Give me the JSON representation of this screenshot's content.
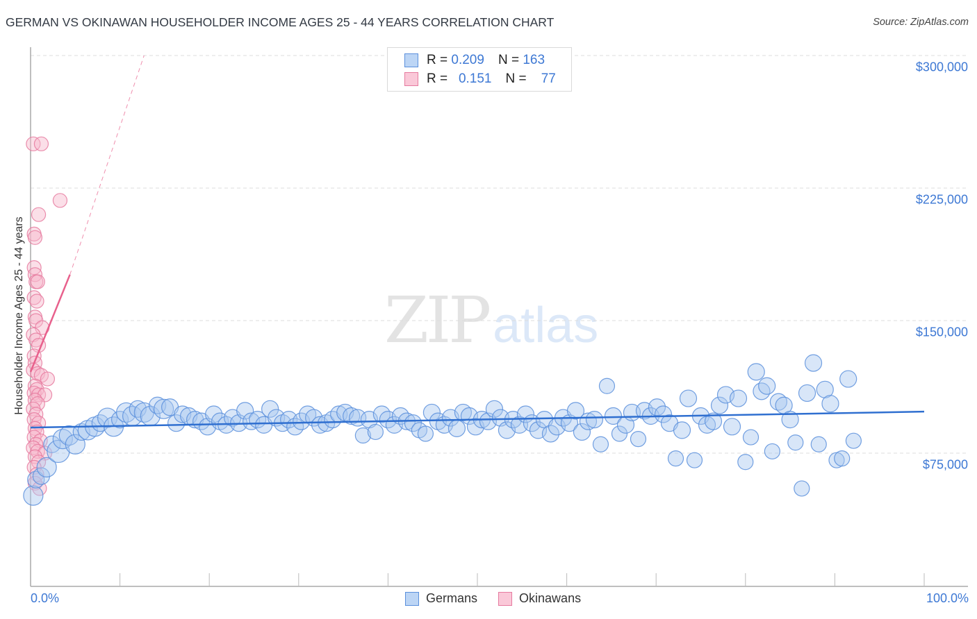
{
  "title": "GERMAN VS OKINAWAN HOUSEHOLDER INCOME AGES 25 - 44 YEARS CORRELATION CHART",
  "source": "Source: ZipAtlas.com",
  "colors": {
    "germans_fill": "#a9c8f0",
    "germans_stroke": "#5a8fdc",
    "germans_line": "#2f6fd0",
    "okinawans_fill": "#f6b8cc",
    "okinawans_stroke": "#e67a9f",
    "okinawans_line": "#e8608c",
    "tick_label": "#3d78d4",
    "grid": "#dddddd"
  },
  "legend": {
    "germans": {
      "r_label": "R =",
      "r_value": "0.209",
      "n_label": "N =",
      "n_value": "163"
    },
    "okinawans": {
      "r_label": "R =",
      "r_value": "0.151",
      "n_label": "N =",
      "n_value": "77"
    }
  },
  "bottom_legend": {
    "germans": "Germans",
    "okinawans": "Okinawans"
  },
  "watermark": {
    "zip": "ZIP",
    "atlas": "atlas"
  },
  "axes": {
    "ylabel": "Householder Income Ages 25 - 44 years",
    "yticks": [
      "$300,000",
      "$225,000",
      "$150,000",
      "$75,000"
    ],
    "xtick_left": "0.0%",
    "xtick_right": "100.0%"
  },
  "chart_data": {
    "type": "scatter",
    "title": "GERMAN VS OKINAWAN HOUSEHOLDER INCOME AGES 25 - 44 YEARS CORRELATION CHART",
    "xlabel": "",
    "ylabel": "Householder Income Ages 25 - 44 years",
    "xlim": [
      0,
      100
    ],
    "ylim": [
      0,
      310000
    ],
    "ytick_values": [
      75000,
      150000,
      225000,
      300000
    ],
    "grid": true,
    "legend_position": "top-center",
    "series": [
      {
        "name": "Germans",
        "R": 0.209,
        "N": 163,
        "trend": {
          "x": [
            0,
            100
          ],
          "y": [
            89500,
            98500
          ]
        },
        "points": [
          [
            0.3,
            51000,
            14
          ],
          [
            0.6,
            60000,
            12
          ],
          [
            1.2,
            62000,
            12
          ],
          [
            1.8,
            67000,
            14
          ],
          [
            2.4,
            80000,
            12
          ],
          [
            3.1,
            76000,
            16
          ],
          [
            3.6,
            83000,
            14
          ],
          [
            4.3,
            85000,
            14
          ],
          [
            5.0,
            80000,
            14
          ],
          [
            5.7,
            87000,
            12
          ],
          [
            6.4,
            88000,
            14
          ],
          [
            7.2,
            90000,
            14
          ],
          [
            7.8,
            92000,
            12
          ],
          [
            8.6,
            95000,
            14
          ],
          [
            9.3,
            90000,
            14
          ],
          [
            10.0,
            94000,
            12
          ],
          [
            10.7,
            98000,
            14
          ],
          [
            11.4,
            96000,
            14
          ],
          [
            12.0,
            100000,
            12
          ],
          [
            12.7,
            98000,
            14
          ],
          [
            13.4,
            96000,
            14
          ],
          [
            14.2,
            102000,
            12
          ],
          [
            14.9,
            100000,
            14
          ],
          [
            15.6,
            101000,
            12
          ],
          [
            16.3,
            92000,
            12
          ],
          [
            17.0,
            97000,
            12
          ],
          [
            17.7,
            96000,
            12
          ],
          [
            18.4,
            94000,
            12
          ],
          [
            19.1,
            93000,
            12
          ],
          [
            19.8,
            90000,
            12
          ],
          [
            20.5,
            97000,
            12
          ],
          [
            21.2,
            93000,
            12
          ],
          [
            21.9,
            91000,
            12
          ],
          [
            22.6,
            95000,
            12
          ],
          [
            23.3,
            92000,
            12
          ],
          [
            24.0,
            99000,
            12
          ],
          [
            24.7,
            93000,
            12
          ],
          [
            25.4,
            94000,
            12
          ],
          [
            26.1,
            91000,
            12
          ],
          [
            26.8,
            100000,
            12
          ],
          [
            27.5,
            95000,
            12
          ],
          [
            28.2,
            92000,
            12
          ],
          [
            28.9,
            94000,
            12
          ],
          [
            29.6,
            90000,
            12
          ],
          [
            30.3,
            93000,
            12
          ],
          [
            31.0,
            97000,
            12
          ],
          [
            31.7,
            95000,
            12
          ],
          [
            32.4,
            91000,
            12
          ],
          [
            33.1,
            92000,
            12
          ],
          [
            33.8,
            94000,
            12
          ],
          [
            34.5,
            97000,
            12
          ],
          [
            35.2,
            98000,
            12
          ],
          [
            35.9,
            96000,
            12
          ],
          [
            36.6,
            95000,
            12
          ],
          [
            37.2,
            85000,
            11
          ],
          [
            37.9,
            94000,
            12
          ],
          [
            38.6,
            87000,
            11
          ],
          [
            39.3,
            97000,
            12
          ],
          [
            40.0,
            94000,
            12
          ],
          [
            40.7,
            91000,
            12
          ],
          [
            41.4,
            96000,
            12
          ],
          [
            42.1,
            93000,
            12
          ],
          [
            42.8,
            92000,
            12
          ],
          [
            43.5,
            88000,
            11
          ],
          [
            44.2,
            86000,
            11
          ],
          [
            44.9,
            98000,
            12
          ],
          [
            45.6,
            93000,
            12
          ],
          [
            46.3,
            91000,
            12
          ],
          [
            47.0,
            95000,
            12
          ],
          [
            47.7,
            89000,
            12
          ],
          [
            48.4,
            98000,
            12
          ],
          [
            49.1,
            96000,
            12
          ],
          [
            49.8,
            90000,
            12
          ],
          [
            50.5,
            94000,
            12
          ],
          [
            51.2,
            93000,
            12
          ],
          [
            51.9,
            100000,
            12
          ],
          [
            52.6,
            95000,
            12
          ],
          [
            53.3,
            88000,
            12
          ],
          [
            54.0,
            94000,
            12
          ],
          [
            54.7,
            91000,
            12
          ],
          [
            55.4,
            97000,
            12
          ],
          [
            56.1,
            92000,
            12
          ],
          [
            56.8,
            88000,
            12
          ],
          [
            57.5,
            94000,
            12
          ],
          [
            58.2,
            86000,
            12
          ],
          [
            58.9,
            90000,
            12
          ],
          [
            59.6,
            95000,
            12
          ],
          [
            60.3,
            92000,
            12
          ],
          [
            61.0,
            99000,
            12
          ],
          [
            61.7,
            87000,
            12
          ],
          [
            62.4,
            93000,
            12
          ],
          [
            63.1,
            94000,
            12
          ],
          [
            63.8,
            80000,
            11
          ],
          [
            64.5,
            113000,
            11
          ],
          [
            65.2,
            96000,
            12
          ],
          [
            65.9,
            86000,
            11
          ],
          [
            66.6,
            91000,
            12
          ],
          [
            67.3,
            98000,
            12
          ],
          [
            68.0,
            83000,
            11
          ],
          [
            68.7,
            99000,
            12
          ],
          [
            69.4,
            96000,
            12
          ],
          [
            70.1,
            101000,
            12
          ],
          [
            70.8,
            97000,
            12
          ],
          [
            71.5,
            92000,
            12
          ],
          [
            72.2,
            72000,
            11
          ],
          [
            72.9,
            88000,
            12
          ],
          [
            73.6,
            106000,
            12
          ],
          [
            74.3,
            71000,
            11
          ],
          [
            75.0,
            96000,
            12
          ],
          [
            75.7,
            91000,
            12
          ],
          [
            76.4,
            93000,
            12
          ],
          [
            77.1,
            102000,
            12
          ],
          [
            77.8,
            108000,
            12
          ],
          [
            78.5,
            90000,
            12
          ],
          [
            79.2,
            106000,
            12
          ],
          [
            80.0,
            70000,
            11
          ],
          [
            80.6,
            84000,
            11
          ],
          [
            81.2,
            121000,
            12
          ],
          [
            81.8,
            110000,
            12
          ],
          [
            82.4,
            113000,
            12
          ],
          [
            83.0,
            76000,
            11
          ],
          [
            83.7,
            104000,
            12
          ],
          [
            84.3,
            102000,
            12
          ],
          [
            85.0,
            94000,
            12
          ],
          [
            85.6,
            81000,
            11
          ],
          [
            86.3,
            55000,
            11
          ],
          [
            86.9,
            109000,
            12
          ],
          [
            87.6,
            126000,
            12
          ],
          [
            88.2,
            80000,
            11
          ],
          [
            88.9,
            111000,
            12
          ],
          [
            89.5,
            103000,
            12
          ],
          [
            90.2,
            71000,
            11
          ],
          [
            90.8,
            72000,
            11
          ],
          [
            91.5,
            117000,
            12
          ],
          [
            92.1,
            82000,
            11
          ]
        ]
      },
      {
        "name": "Okinawans",
        "R": 0.151,
        "N": 77,
        "trend": {
          "x": [
            0,
            4.4
          ],
          "y": [
            121000,
            176000
          ],
          "extended": {
            "x": [
              4.4,
              12.7
            ],
            "y": [
              176000,
              300000
            ]
          }
        },
        "points": [
          [
            0.3,
            250000,
            10
          ],
          [
            1.2,
            250000,
            10
          ],
          [
            3.3,
            218000,
            10
          ],
          [
            0.9,
            210000,
            10
          ],
          [
            0.4,
            199000,
            10
          ],
          [
            0.5,
            197000,
            10
          ],
          [
            0.4,
            180000,
            10
          ],
          [
            0.5,
            176000,
            10
          ],
          [
            0.6,
            172000,
            10
          ],
          [
            0.8,
            172000,
            10
          ],
          [
            0.4,
            163000,
            10
          ],
          [
            0.7,
            161000,
            10
          ],
          [
            0.5,
            152000,
            10
          ],
          [
            0.6,
            150000,
            10
          ],
          [
            1.3,
            146000,
            10
          ],
          [
            0.3,
            142000,
            10
          ],
          [
            0.6,
            139000,
            10
          ],
          [
            0.9,
            136000,
            10
          ],
          [
            0.4,
            130000,
            10
          ],
          [
            0.5,
            126000,
            10
          ],
          [
            0.3,
            122000,
            10
          ],
          [
            0.8,
            120000,
            10
          ],
          [
            1.2,
            119000,
            10
          ],
          [
            1.9,
            117000,
            10
          ],
          [
            0.5,
            113000,
            10
          ],
          [
            0.7,
            111000,
            10
          ],
          [
            0.4,
            109000,
            10
          ],
          [
            0.9,
            108000,
            10
          ],
          [
            1.6,
            108000,
            10
          ],
          [
            0.5,
            105000,
            10
          ],
          [
            0.8,
            103000,
            10
          ],
          [
            0.3,
            100000,
            10
          ],
          [
            0.6,
            97000,
            10
          ],
          [
            0.4,
            94000,
            10
          ],
          [
            0.9,
            92000,
            10
          ],
          [
            0.5,
            89000,
            10
          ],
          [
            0.7,
            87000,
            10
          ],
          [
            0.4,
            84000,
            10
          ],
          [
            1.1,
            82000,
            10
          ],
          [
            0.6,
            80000,
            10
          ],
          [
            0.3,
            78000,
            10
          ],
          [
            0.8,
            76000,
            10
          ],
          [
            1.6,
            75000,
            10
          ],
          [
            0.5,
            73000,
            10
          ],
          [
            0.9,
            70000,
            10
          ],
          [
            0.4,
            67000,
            10
          ],
          [
            0.7,
            63000,
            10
          ],
          [
            0.5,
            58000,
            10
          ],
          [
            1.0,
            55000,
            10
          ]
        ]
      }
    ]
  }
}
